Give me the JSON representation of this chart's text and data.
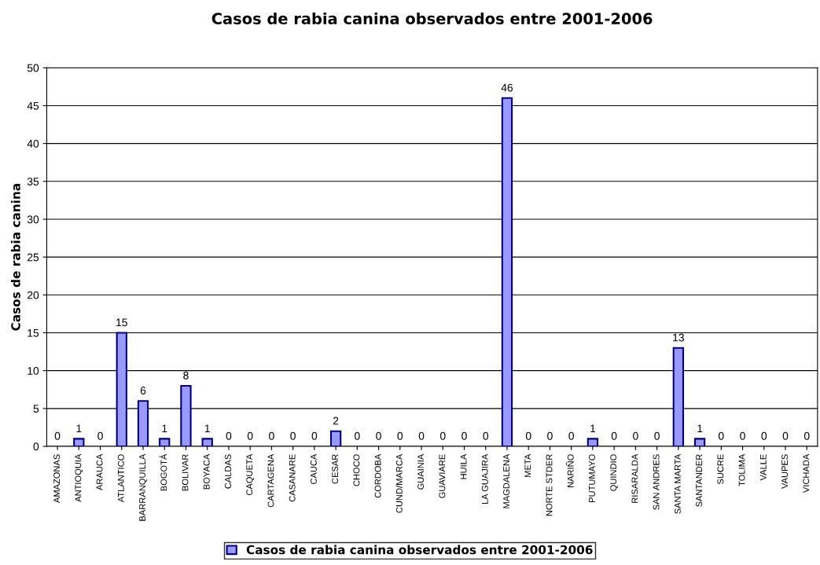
{
  "chart_data": {
    "type": "bar",
    "title": "Casos de rabia canina observados entre 2001-2006",
    "ylabel": "Casos de rabia canina",
    "categories": [
      "AMAZONAS",
      "ANTIOQUIA",
      "ARAUCA",
      "ATLANTICO",
      "BARRANQUILLA",
      "BOGOTÁ",
      "BOLIVAR",
      "BOYACA",
      "CALDAS",
      "CAQUETA",
      "CARTAGENA",
      "CASANARE",
      "CAUCA",
      "CESAR",
      "CHOCO",
      "CORDOBA",
      "CUND/MARCA",
      "GUAINIA",
      "GUAVIARE",
      "HUILA",
      "LA GUAJIRA",
      "MAGDALENA",
      "META",
      "NORTE STDER",
      "NARIÑO",
      "PUTUMAYO",
      "QUINDIO",
      "RISARALDA",
      "SAN ANDRES",
      "SANTA MARTA",
      "SANTANDER",
      "SUCRE",
      "TOLIMA",
      "VALLE",
      "VAUPES",
      "VICHADA"
    ],
    "series": [
      {
        "name": "Casos de rabia canina observados entre 2001-2006",
        "color": "#9999ff",
        "values": [
          0,
          1,
          0,
          15,
          6,
          1,
          8,
          1,
          0,
          0,
          0,
          0,
          0,
          2,
          0,
          0,
          0,
          0,
          0,
          0,
          0,
          46,
          0,
          0,
          0,
          1,
          0,
          0,
          0,
          13,
          1,
          0,
          0,
          0,
          0,
          0
        ]
      }
    ],
    "ylim": [
      0,
      50
    ],
    "yticks": [
      0,
      5,
      10,
      15,
      20,
      25,
      30,
      35,
      40,
      45,
      50
    ],
    "grid": "y",
    "legend": "bottom",
    "data_labels": true
  }
}
